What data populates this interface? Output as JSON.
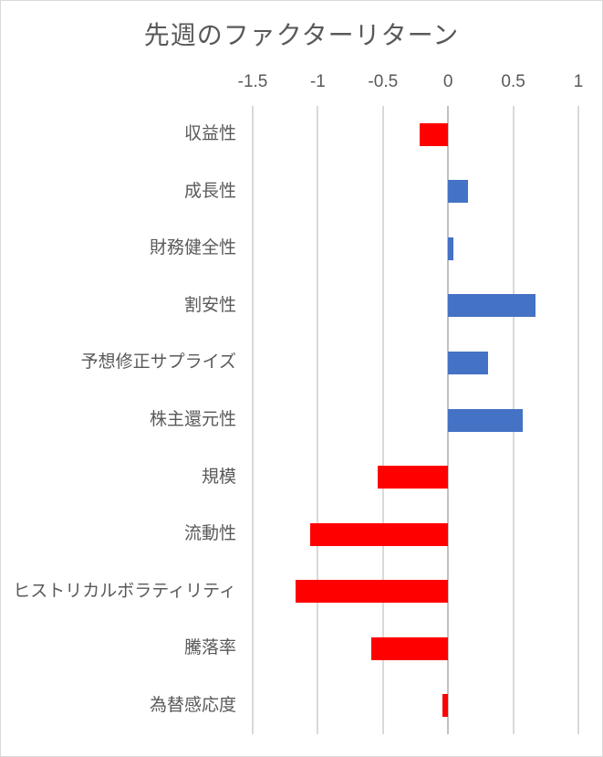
{
  "chart_data": {
    "type": "bar",
    "orientation": "horizontal",
    "title": "先週のファクターリターン",
    "categories": [
      "収益性",
      "成長性",
      "財務健全性",
      "割安性",
      "予想修正サプライズ",
      "株主還元性",
      "規模",
      "流動性",
      "ヒストリカルボラティリティ",
      "騰落率",
      "為替感応度"
    ],
    "values": [
      -0.22,
      0.15,
      0.04,
      0.67,
      0.31,
      0.57,
      -0.54,
      -1.06,
      -1.17,
      -0.59,
      -0.04
    ],
    "xlim": [
      -1.5,
      1
    ],
    "x_ticks": [
      -1.5,
      -1,
      -0.5,
      0,
      0.5,
      1
    ],
    "x_tick_labels": [
      "-1.5",
      "-1",
      "-0.5",
      "0",
      "0.5",
      "1"
    ],
    "xlabel": "",
    "ylabel": "",
    "grid": true,
    "legend": false,
    "axis_position": "top",
    "colors": {
      "positive": "#4472c4",
      "negative": "#ff0000",
      "gridline": "#d9d9d9",
      "zero_line": "#c0c0c0",
      "text": "#595959",
      "chart_border": "#d9d9d9"
    }
  }
}
